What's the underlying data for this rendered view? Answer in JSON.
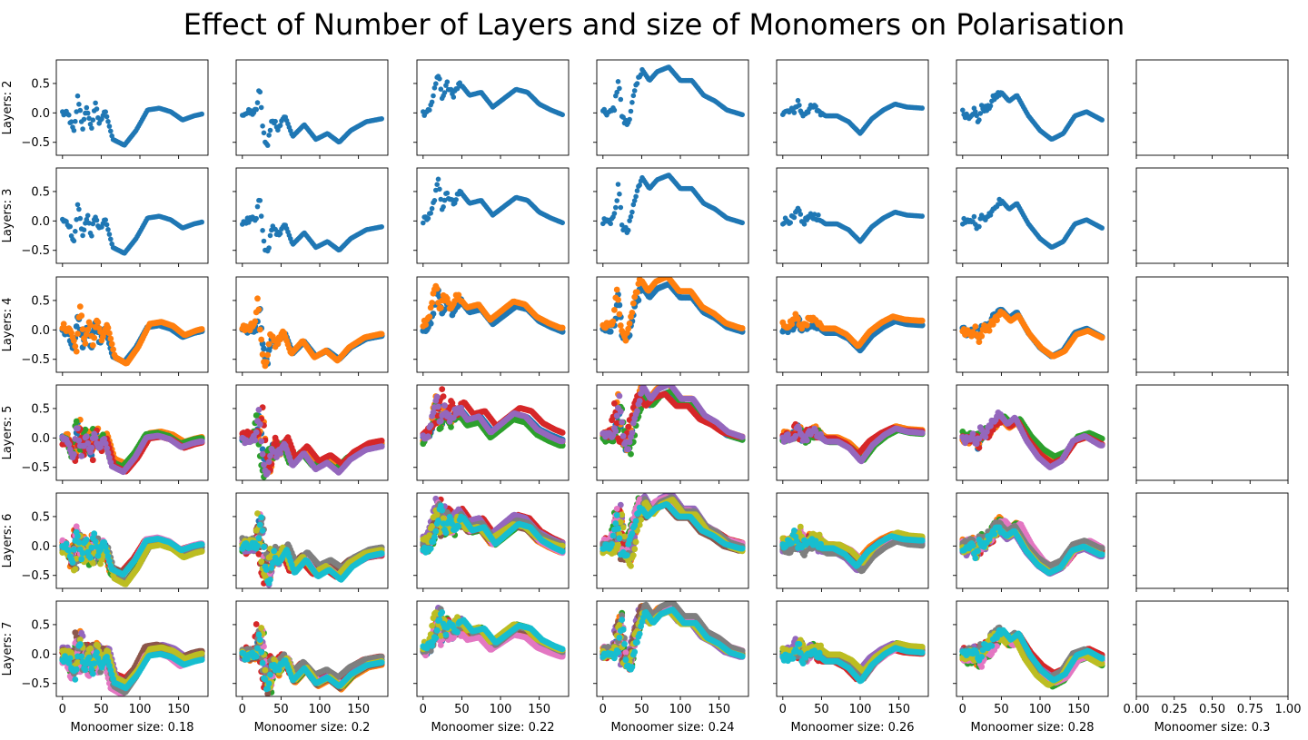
{
  "title": "Effect of Number of Layers and size of Monomers on Polarisation",
  "chart_data": {
    "type": "scatter",
    "title": "Effect of Number of Layers and size of Monomers on Polarisation",
    "row_labels": [
      "Layers: 2",
      "Layers: 3",
      "Layers: 4",
      "Layers: 5",
      "Layers: 6",
      "Layers: 7"
    ],
    "col_labels": [
      "Monoomer size: 0.18",
      "Monoomer size: 0.2",
      "Monoomer size: 0.22",
      "Monoomer size: 0.24",
      "Monoomer size: 0.26",
      "Monoomer size: 0.28",
      "Monoomer size: 0.3"
    ],
    "xlim": [
      -8,
      188
    ],
    "ylim": [
      -0.72,
      0.9
    ],
    "xticks": [
      0,
      50,
      100,
      150
    ],
    "yticks": [
      0.5,
      0.0,
      -0.5
    ],
    "xtick_labels": [
      "0",
      "50",
      "100",
      "150"
    ],
    "ytick_labels": [
      "0.5",
      "0.0",
      "−0.5"
    ],
    "empty_column_xticks": [
      "0.00",
      "0.25",
      "0.50",
      "0.75",
      "1.00"
    ],
    "series_colors": [
      "#1f77b4",
      "#ff7f0e",
      "#2ca02c",
      "#d62728",
      "#9467bd",
      "#8c564b",
      "#e377c2",
      "#7f7f7f",
      "#bcbd22",
      "#17becf"
    ],
    "marker": "dot",
    "grid": false,
    "x_range_of_each_series": [
      0,
      180
    ],
    "columns": [
      {
        "base": [
          [
            0,
            0
          ],
          [
            8,
            -0.05
          ],
          [
            15,
            -0.35
          ],
          [
            20,
            0.3
          ],
          [
            26,
            -0.25
          ],
          [
            32,
            0.1
          ],
          [
            37,
            -0.3
          ],
          [
            42,
            0.15
          ],
          [
            48,
            -0.2
          ],
          [
            55,
            0.05
          ],
          [
            65,
            -0.45
          ],
          [
            80,
            -0.55
          ],
          [
            95,
            -0.3
          ],
          [
            110,
            0.05
          ],
          [
            125,
            0.08
          ],
          [
            140,
            0.02
          ],
          [
            155,
            -0.12
          ],
          [
            170,
            -0.05
          ],
          [
            180,
            -0.02
          ]
        ],
        "spread": 0.08
      },
      {
        "base": [
          [
            0,
            0
          ],
          [
            10,
            0
          ],
          [
            18,
            0.02
          ],
          [
            22,
            0.45
          ],
          [
            27,
            -0.3
          ],
          [
            32,
            -0.6
          ],
          [
            38,
            -0.1
          ],
          [
            45,
            -0.25
          ],
          [
            55,
            -0.05
          ],
          [
            65,
            -0.4
          ],
          [
            80,
            -0.2
          ],
          [
            95,
            -0.45
          ],
          [
            110,
            -0.35
          ],
          [
            125,
            -0.5
          ],
          [
            140,
            -0.3
          ],
          [
            160,
            -0.15
          ],
          [
            180,
            -0.1
          ]
        ],
        "spread": 0.08
      },
      {
        "base": [
          [
            0,
            0
          ],
          [
            10,
            0.1
          ],
          [
            15,
            0.4
          ],
          [
            20,
            0.7
          ],
          [
            25,
            0.2
          ],
          [
            30,
            0.5
          ],
          [
            38,
            0.3
          ],
          [
            48,
            0.5
          ],
          [
            60,
            0.3
          ],
          [
            75,
            0.35
          ],
          [
            90,
            0.1
          ],
          [
            105,
            0.25
          ],
          [
            120,
            0.4
          ],
          [
            135,
            0.35
          ],
          [
            150,
            0.15
          ],
          [
            165,
            0.05
          ],
          [
            180,
            -0.03
          ]
        ],
        "spread": 0.1
      },
      {
        "base": [
          [
            0,
            0
          ],
          [
            10,
            0
          ],
          [
            15,
            0.1
          ],
          [
            20,
            0.6
          ],
          [
            25,
            -0.1
          ],
          [
            32,
            -0.2
          ],
          [
            40,
            0.3
          ],
          [
            50,
            0.75
          ],
          [
            60,
            0.55
          ],
          [
            70,
            0.7
          ],
          [
            85,
            0.78
          ],
          [
            100,
            0.55
          ],
          [
            115,
            0.55
          ],
          [
            130,
            0.3
          ],
          [
            145,
            0.2
          ],
          [
            160,
            0.05
          ],
          [
            180,
            -0.03
          ]
        ],
        "spread": 0.08
      },
      {
        "base": [
          [
            0,
            0
          ],
          [
            10,
            0.02
          ],
          [
            15,
            0.05
          ],
          [
            20,
            0.2
          ],
          [
            25,
            -0.05
          ],
          [
            32,
            0.05
          ],
          [
            40,
            0.1
          ],
          [
            55,
            -0.05
          ],
          [
            70,
            -0.05
          ],
          [
            85,
            -0.15
          ],
          [
            100,
            -0.35
          ],
          [
            115,
            -0.1
          ],
          [
            130,
            0.05
          ],
          [
            145,
            0.15
          ],
          [
            160,
            0.1
          ],
          [
            180,
            0.08
          ]
        ],
        "spread": 0.08
      },
      {
        "base": [
          [
            0,
            0
          ],
          [
            8,
            -0.05
          ],
          [
            15,
            0.05
          ],
          [
            20,
            -0.15
          ],
          [
            25,
            0.1
          ],
          [
            32,
            0.05
          ],
          [
            40,
            0.25
          ],
          [
            50,
            0.35
          ],
          [
            60,
            0.2
          ],
          [
            70,
            0.3
          ],
          [
            85,
            -0.05
          ],
          [
            100,
            -0.3
          ],
          [
            115,
            -0.45
          ],
          [
            130,
            -0.35
          ],
          [
            145,
            -0.05
          ],
          [
            160,
            0.02
          ],
          [
            180,
            -0.12
          ]
        ],
        "spread": 0.08
      }
    ],
    "series_per_row": [
      1,
      1,
      2,
      5,
      10,
      10
    ]
  }
}
